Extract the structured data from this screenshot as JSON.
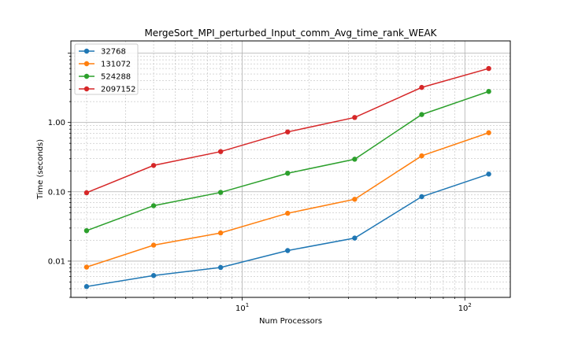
{
  "chart_data": {
    "type": "line",
    "title": "MergeSort_MPI_perturbed_Input_comm_Avg_time_rank_WEAK",
    "xlabel": "Num Processors",
    "ylabel": "Time (seconds)",
    "x_scale": "log",
    "y_scale": "log",
    "xlim": [
      1.7,
      160
    ],
    "ylim": [
      0.003,
      15
    ],
    "grid": true,
    "legend_position": "top-left",
    "x": [
      2,
      4,
      8,
      16,
      32,
      64,
      128
    ],
    "x_ticks": [
      {
        "value": 10,
        "base": "10",
        "exp": "1"
      },
      {
        "value": 100,
        "base": "10",
        "exp": "2"
      }
    ],
    "y_ticks": [
      {
        "value": 0.01,
        "label": "0.01"
      },
      {
        "value": 0.1,
        "label": "0.10"
      },
      {
        "value": 1.0,
        "label": "1.00"
      }
    ],
    "series": [
      {
        "name": "32768",
        "color": "#1f77b4",
        "values": [
          0.0043,
          0.0062,
          0.0081,
          0.0142,
          0.0215,
          0.085,
          0.18
        ]
      },
      {
        "name": "131072",
        "color": "#ff7f0e",
        "values": [
          0.0082,
          0.017,
          0.0255,
          0.049,
          0.078,
          0.33,
          0.71
        ]
      },
      {
        "name": "524288",
        "color": "#2ca02c",
        "values": [
          0.0275,
          0.063,
          0.098,
          0.185,
          0.295,
          1.3,
          2.8
        ]
      },
      {
        "name": "2097152",
        "color": "#d62728",
        "values": [
          0.097,
          0.24,
          0.38,
          0.73,
          1.18,
          3.2,
          6.0
        ]
      }
    ]
  }
}
